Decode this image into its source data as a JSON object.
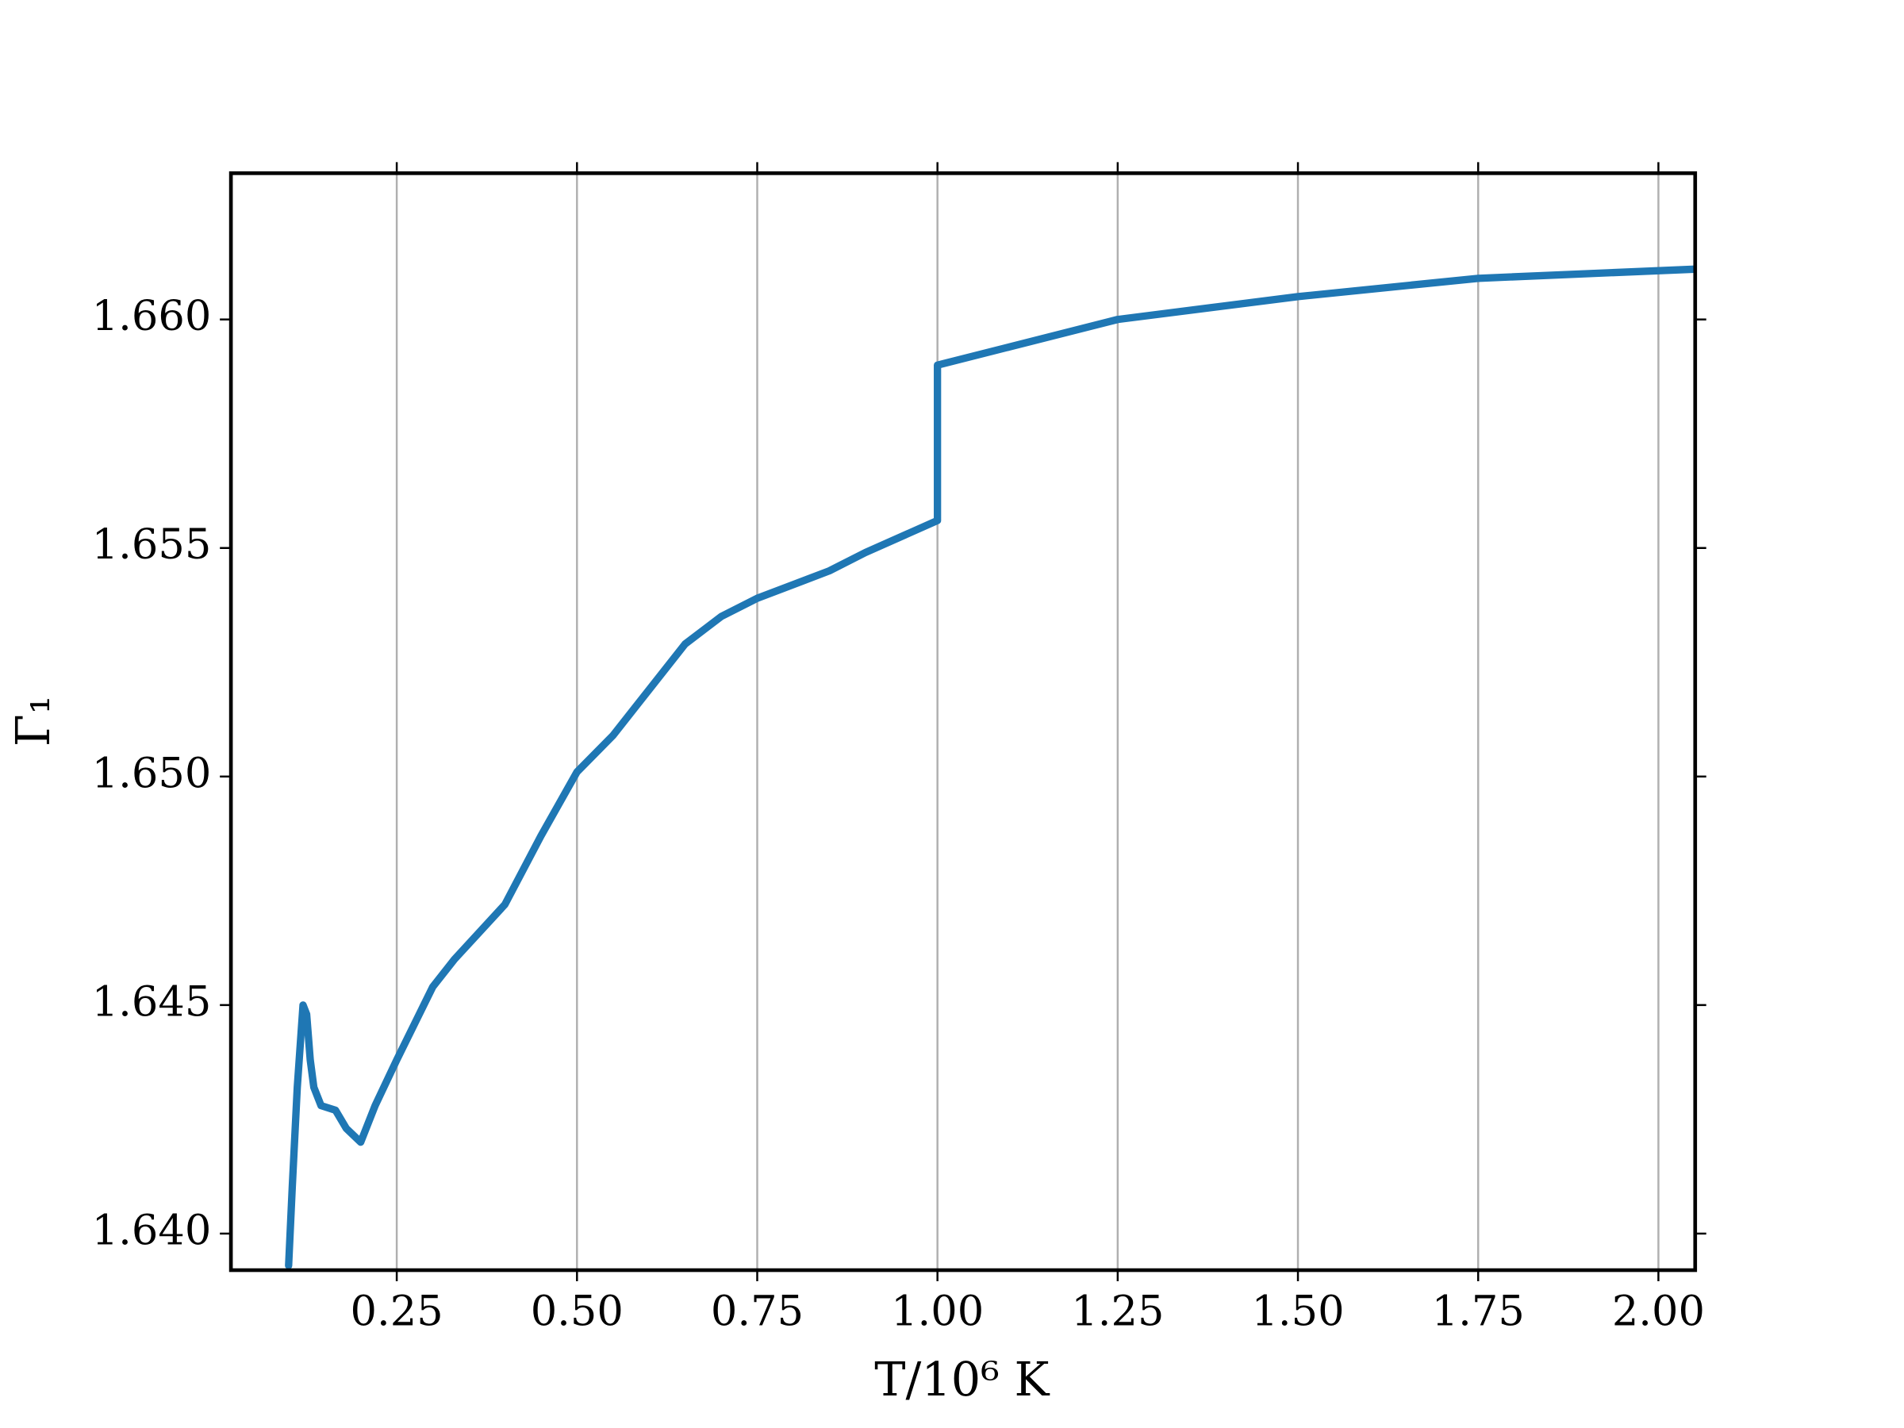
{
  "chart_data": {
    "type": "line",
    "x_label": "T/10⁶ K",
    "y_label": "Γ₁",
    "x": [
      0.1,
      0.105,
      0.112,
      0.12,
      0.125,
      0.13,
      0.135,
      0.145,
      0.165,
      0.18,
      0.2,
      0.22,
      0.25,
      0.3,
      0.33,
      0.4,
      0.45,
      0.5,
      0.55,
      0.6,
      0.65,
      0.7,
      0.75,
      0.8,
      0.85,
      0.9,
      1.0,
      1.0,
      1.1,
      1.25,
      1.5,
      1.75,
      2.05
    ],
    "series": [
      {
        "name": "Γ₁",
        "color": "#1f77b4",
        "values": [
          1.6393,
          1.641,
          1.6432,
          1.645,
          1.6448,
          1.6438,
          1.6432,
          1.6428,
          1.6427,
          1.6423,
          1.642,
          1.6428,
          1.6438,
          1.6454,
          1.646,
          1.6472,
          1.6487,
          1.6501,
          1.6509,
          1.6519,
          1.6529,
          1.6535,
          1.6539,
          1.6542,
          1.6545,
          1.6549,
          1.6556,
          1.659,
          1.6594,
          1.66,
          1.6605,
          1.6609,
          1.6611
        ]
      }
    ],
    "xlim": [
      0.02,
      2.051
    ],
    "ylim": [
      1.6392,
      1.6632
    ],
    "xticks": [
      0.25,
      {
        "value": 0.5,
        "label": "0.50"
      },
      0.75,
      {
        "value": 1,
        "label": "1.00"
      },
      1.25,
      {
        "value": 1.5,
        "label": "1.50"
      },
      1.75,
      {
        "value": 2,
        "label": "2.00"
      }
    ],
    "yticks": [
      {
        "value": 1.64,
        "label": "1.640"
      },
      {
        "value": 1.645,
        "label": "1.645"
      },
      {
        "value": 1.65,
        "label": "1.650"
      },
      {
        "value": 1.655,
        "label": "1.655"
      },
      {
        "value": 1.66,
        "label": "1.660"
      }
    ],
    "grid": "x"
  }
}
